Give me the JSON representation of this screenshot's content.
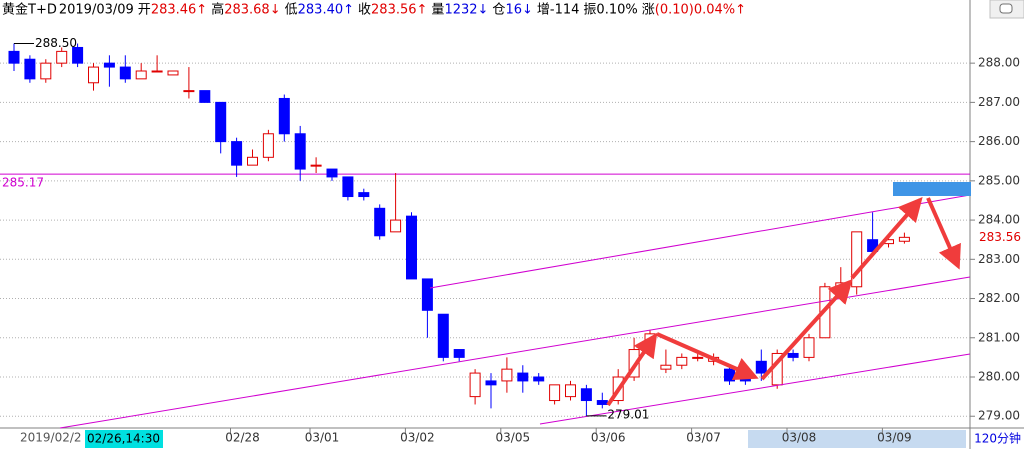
{
  "header": {
    "title": "黄金T+D",
    "date": "2019/03/09",
    "fields": [
      {
        "label": "开",
        "value": "283.46↑",
        "color": "#e00000"
      },
      {
        "label": "高",
        "value": "283.68↓",
        "color": "#e00000"
      },
      {
        "label": "低",
        "value": "283.40↑",
        "color": "#0000e0"
      },
      {
        "label": "收",
        "value": "283.56↑",
        "color": "#e00000"
      },
      {
        "label": "量",
        "value": "1232↓",
        "color": "#0000e0"
      },
      {
        "label": "仓",
        "value": "16↓",
        "color": "#0000e0"
      },
      {
        "label": "增",
        "value": "-114",
        "color": "#000000"
      },
      {
        "label": "振",
        "value": "0.10%",
        "color": "#000000"
      },
      {
        "label": "涨",
        "value": "(0.10)0.04%↑",
        "color": "#e00000"
      }
    ]
  },
  "chart_data": {
    "type": "candlestick",
    "up_color": "#e00000",
    "down_color": "#0000ff",
    "open": [
      288.3,
      288.1,
      287.6,
      288.0,
      288.4,
      287.5,
      288.0,
      287.9,
      287.6,
      287.8,
      287.7,
      287.3,
      287.3,
      287.0,
      286.0,
      285.4,
      285.6,
      287.1,
      286.2,
      285.4,
      285.3,
      285.1,
      284.7,
      284.3,
      283.7,
      284.1,
      282.5,
      281.6,
      280.7,
      279.5,
      279.9,
      279.9,
      280.1,
      280.0,
      279.4,
      279.5,
      279.7,
      279.4,
      279.4,
      280.0,
      280.8,
      280.2,
      280.3,
      280.5,
      280.4,
      280.2,
      280.0,
      280.4,
      279.8,
      280.6,
      280.5,
      281.0,
      282.3,
      282.3,
      283.5,
      283.4,
      283.46
    ],
    "high": [
      288.5,
      288.2,
      288.1,
      288.4,
      288.5,
      288.0,
      288.2,
      288.2,
      288.0,
      288.2,
      287.8,
      287.9,
      287.3,
      287.0,
      286.1,
      285.8,
      286.3,
      287.2,
      286.4,
      285.6,
      285.3,
      285.1,
      284.8,
      284.4,
      285.2,
      284.2,
      282.5,
      281.6,
      280.7,
      280.2,
      280.1,
      280.5,
      280.3,
      280.1,
      279.8,
      279.9,
      279.8,
      279.6,
      280.2,
      281.0,
      281.2,
      280.7,
      280.6,
      280.6,
      280.6,
      280.3,
      280.1,
      280.7,
      280.7,
      280.7,
      281.1,
      282.4,
      282.8,
      283.7,
      284.2,
      283.6,
      283.68
    ],
    "low": [
      287.8,
      287.5,
      287.5,
      287.9,
      287.9,
      287.3,
      287.4,
      287.5,
      287.6,
      287.8,
      287.7,
      287.1,
      287.0,
      285.7,
      285.1,
      285.4,
      285.5,
      286.0,
      285.0,
      285.2,
      285.0,
      284.5,
      284.5,
      283.5,
      283.7,
      282.5,
      281.0,
      280.4,
      280.4,
      279.3,
      279.2,
      279.6,
      279.6,
      279.8,
      279.3,
      279.4,
      279.01,
      279.2,
      279.3,
      279.9,
      280.6,
      280.1,
      280.2,
      280.4,
      280.3,
      279.8,
      279.8,
      279.9,
      279.7,
      280.4,
      280.4,
      281.0,
      282.1,
      282.1,
      283.1,
      283.3,
      283.4
    ],
    "close": [
      288.0,
      287.6,
      288.0,
      288.3,
      288.0,
      287.9,
      287.9,
      287.6,
      287.8,
      287.8,
      287.8,
      287.3,
      287.0,
      286.0,
      285.4,
      285.6,
      286.2,
      286.2,
      285.3,
      285.4,
      285.1,
      284.6,
      284.6,
      283.6,
      284.0,
      282.5,
      281.7,
      280.5,
      280.5,
      280.1,
      279.8,
      280.2,
      279.9,
      279.9,
      279.8,
      279.8,
      279.4,
      279.3,
      280.0,
      280.7,
      281.1,
      280.3,
      280.5,
      280.5,
      280.5,
      279.9,
      279.9,
      280.1,
      280.6,
      280.5,
      281.0,
      282.3,
      282.4,
      283.7,
      283.2,
      283.5,
      283.56
    ],
    "categories": [
      null,
      null,
      null,
      null,
      null,
      null,
      null,
      null,
      null,
      null,
      null,
      null,
      null,
      null,
      null,
      "02/28",
      null,
      null,
      null,
      null,
      "03/01",
      null,
      null,
      null,
      null,
      null,
      "03/02",
      null,
      null,
      null,
      null,
      null,
      "03/05",
      null,
      null,
      null,
      null,
      null,
      "03/06",
      null,
      null,
      null,
      null,
      null,
      "03/07",
      null,
      null,
      null,
      null,
      null,
      "03/08",
      null,
      null,
      null,
      null,
      null,
      "03/09"
    ],
    "x_start_label": "2019/02/2",
    "cursor_label": "02/26,14:30",
    "period_label": "120分钟",
    "ylim": [
      278.7,
      289.1
    ],
    "yticks": [
      {
        "value": 279,
        "label": "279.00"
      },
      {
        "value": 280,
        "label": "280.00"
      },
      {
        "value": 281,
        "label": "281.00"
      },
      {
        "value": 282,
        "label": "282.00"
      },
      {
        "value": 283,
        "label": "283.00"
      },
      {
        "value": 284,
        "label": "284.00"
      },
      {
        "value": 285,
        "label": "285.00"
      },
      {
        "value": 286,
        "label": "286.00"
      },
      {
        "value": 287,
        "label": "287.00"
      },
      {
        "value": 288,
        "label": "288.00"
      }
    ],
    "grid": true,
    "max_marker": {
      "value": 288.5,
      "label": "288.50"
    },
    "min_marker": 279.01,
    "hline": 285.17,
    "last_price": 283.56
  }
}
